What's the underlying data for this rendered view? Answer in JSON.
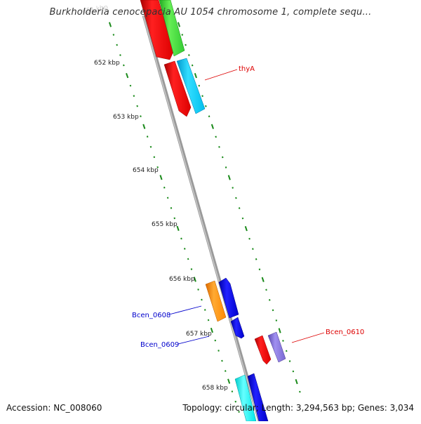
{
  "header": {
    "title": "Burkholderia cenocepacia AU 1054 chromosome 1, complete sequ..."
  },
  "footer": {
    "accession": "Accession: NC_008060",
    "summary": "Topology: circular; Length: 3,294,563 bp; Genes: 3,034"
  },
  "ruler": {
    "ticks": [
      {
        "label": "652 kbp"
      },
      {
        "label": "653 kbp"
      },
      {
        "label": "654 kbp"
      },
      {
        "label": "655 kbp"
      },
      {
        "label": "656 kbp"
      },
      {
        "label": "657 kbp"
      },
      {
        "label": "658 kbp"
      }
    ]
  },
  "genes": [
    {
      "label": "thyA",
      "color": "#dd0000"
    },
    {
      "label": "Bcen_0608",
      "color": "#0000cc"
    },
    {
      "label": "Bcen_0609",
      "color": "#0000cc"
    },
    {
      "label": "Bcen_0610",
      "color": "#dd0000"
    }
  ],
  "colors": {
    "backbone": "#8c8c8c",
    "tick": "#1a8a1a",
    "red": "#ee0000",
    "green": "#33cc33",
    "cyan": "#00c8f0",
    "blue": "#0000dd",
    "orange": "#ff8c00",
    "purple": "#8070d0",
    "aqua": "#00eeee"
  }
}
